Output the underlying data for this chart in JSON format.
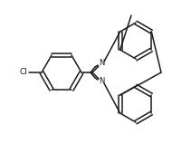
{
  "bg_color": "#ffffff",
  "line_color": "#1a1a1a",
  "line_width": 1.1,
  "cl_label": "Cl",
  "n_label": "N",
  "figsize": [
    2.11,
    1.59
  ],
  "dpi": 100,
  "cl_fontsize": 6.5,
  "n_fontsize": 6.0
}
